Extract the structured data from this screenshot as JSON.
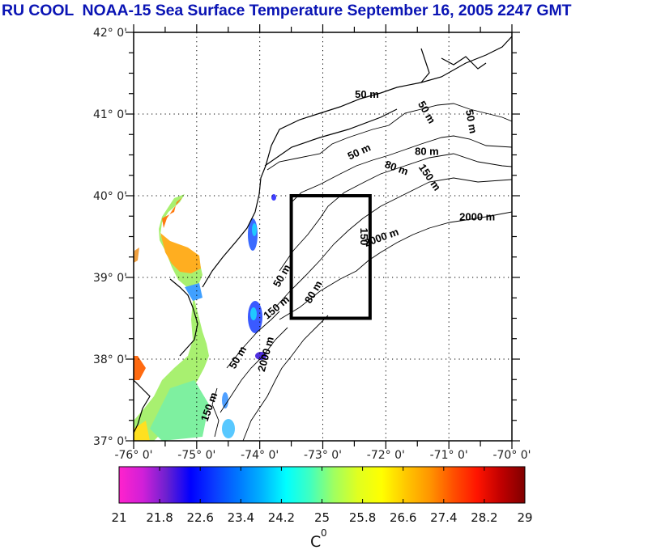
{
  "title": "RU COOL  NOAA-15 Sea Surface Temperature September 16, 2005 2247 GMT",
  "map": {
    "lon_range": [
      -76,
      -70
    ],
    "lat_range": [
      37,
      42
    ],
    "lon_ticks": [
      {
        "value": -76,
        "label": "-76° 0'"
      },
      {
        "value": -75,
        "label": "-75° 0'"
      },
      {
        "value": -74,
        "label": "-74° 0'"
      },
      {
        "value": -73,
        "label": "-73° 0'"
      },
      {
        "value": -72,
        "label": "-72° 0'"
      },
      {
        "value": -71,
        "label": "-71° 0'"
      },
      {
        "value": -70,
        "label": "-70° 0'"
      }
    ],
    "lat_ticks": [
      {
        "value": 42,
        "label": "42° 0'"
      },
      {
        "value": 41,
        "label": "41° 0'"
      },
      {
        "value": 40,
        "label": "40° 0'"
      },
      {
        "value": 39,
        "label": "39° 0'"
      },
      {
        "value": 38,
        "label": "38° 0'"
      },
      {
        "value": 37,
        "label": "37° 0'"
      }
    ],
    "study_box": {
      "lon_min": -73.5,
      "lon_max": -72.25,
      "lat_min": 38.5,
      "lat_max": 40.0
    },
    "contour_labels": [
      {
        "text": "50 m",
        "lon": -72.3,
        "lat": 41.2,
        "angle": 0
      },
      {
        "text": "50 m",
        "lon": -71.4,
        "lat": 41.0,
        "angle": 60
      },
      {
        "text": "50 m",
        "lon": -70.7,
        "lat": 40.9,
        "angle": 80
      },
      {
        "text": "50 m",
        "lon": -72.4,
        "lat": 40.5,
        "angle": -25
      },
      {
        "text": "80 m",
        "lon": -71.35,
        "lat": 40.5,
        "angle": 0
      },
      {
        "text": "80 m",
        "lon": -71.85,
        "lat": 40.3,
        "angle": 20
      },
      {
        "text": "150 m",
        "lon": -71.35,
        "lat": 40.2,
        "angle": 55
      },
      {
        "text": "2000 m",
        "lon": -70.55,
        "lat": 39.7,
        "angle": 0
      },
      {
        "text": "2000 m",
        "lon": -72.05,
        "lat": 39.45,
        "angle": -20
      },
      {
        "text": "150",
        "lon": -72.4,
        "lat": 39.5,
        "angle": 90
      },
      {
        "text": "80 m",
        "lon": -73.1,
        "lat": 38.8,
        "angle": -60
      },
      {
        "text": "50 m",
        "lon": -73.6,
        "lat": 39.0,
        "angle": -60
      },
      {
        "text": "150 m",
        "lon": -73.7,
        "lat": 38.6,
        "angle": -40
      },
      {
        "text": "50 m",
        "lon": -74.3,
        "lat": 38.0,
        "angle": -60
      },
      {
        "text": "150 m",
        "lon": -74.75,
        "lat": 37.4,
        "angle": -70
      },
      {
        "text": "2000 m",
        "lon": -73.85,
        "lat": 38.05,
        "angle": -75
      }
    ]
  },
  "colorbar": {
    "min": 21,
    "max": 29,
    "tick_labels": [
      "21",
      "21.8",
      "22.6",
      "23.4",
      "24.2",
      "25",
      "25.8",
      "26.6",
      "27.4",
      "28.2",
      "29"
    ],
    "unit_label": "C",
    "unit_superscript": "0",
    "colors": [
      "#ff22cc",
      "#d020d8",
      "#6a20d0",
      "#0000ff",
      "#0a3cff",
      "#0078ff",
      "#00b4ff",
      "#00ffff",
      "#40ffc0",
      "#a0ff60",
      "#e0ff20",
      "#ffff00",
      "#ffc800",
      "#ff9600",
      "#ff5000",
      "#ff1400",
      "#c00000",
      "#800000"
    ]
  },
  "colors": {
    "title": "#0a14b4",
    "frame": "#000000",
    "grid": "#000000"
  }
}
